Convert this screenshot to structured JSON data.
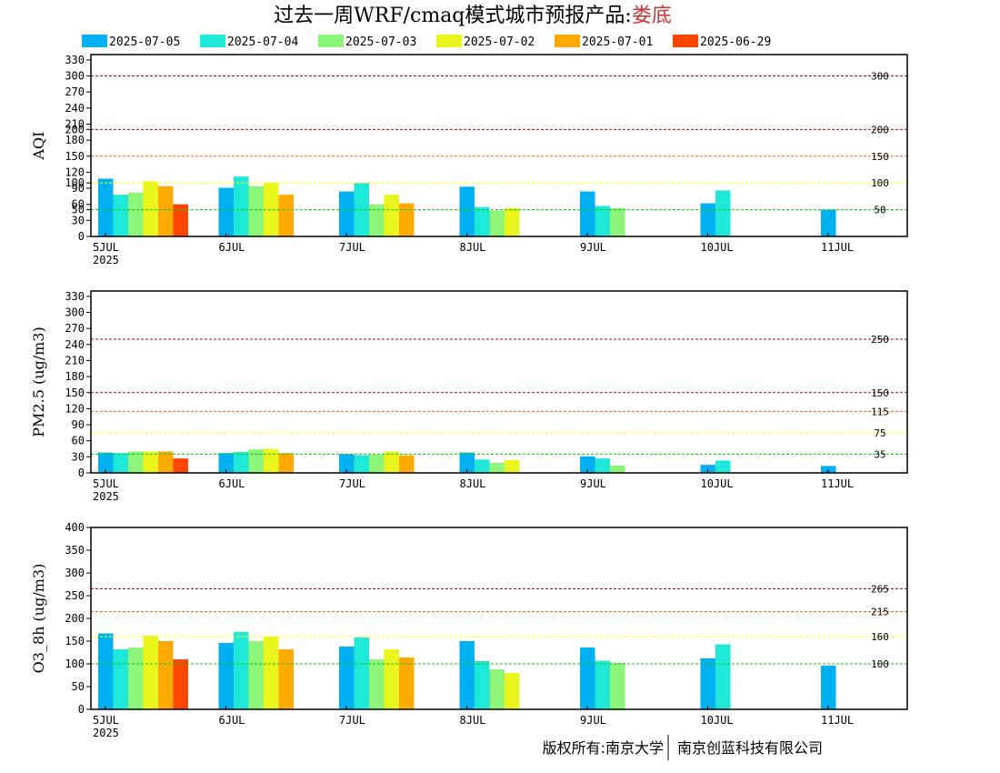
{
  "header": {
    "title_main": "过去一周WRF/cmaq模式城市预报产品:",
    "title_city": "娄底",
    "title_city_color": "#cc3333"
  },
  "footer": {
    "copyright_left": "版权所有:南京大学",
    "copyright_right": "南京创蓝科技有限公司"
  },
  "chart_data": {
    "type": "bar",
    "categories": [
      "5JUL",
      "6JUL",
      "7JUL",
      "8JUL",
      "9JUL",
      "10JUL",
      "11JUL"
    ],
    "first_category_year": "2025",
    "series": [
      {
        "name": "2025-07-05",
        "color": "#00b0f0"
      },
      {
        "name": "2025-07-04",
        "color": "#1ee8d8"
      },
      {
        "name": "2025-07-03",
        "color": "#8cf57a"
      },
      {
        "name": "2025-07-02",
        "color": "#eaf51e"
      },
      {
        "name": "2025-07-01",
        "color": "#ffaa00"
      },
      {
        "name": "2025-06-29",
        "color": "#ff4500"
      }
    ],
    "legend_placement": "top",
    "panels": [
      {
        "ylabel": "AQI",
        "ylim": [
          0,
          340
        ],
        "yticks": [
          0,
          30,
          50,
          60,
          90,
          100,
          120,
          150,
          180,
          200,
          210,
          240,
          270,
          300,
          330
        ],
        "values": [
          [
            108,
            91,
            84,
            93,
            84,
            62,
            50
          ],
          [
            78,
            112,
            100,
            55,
            57,
            86,
            null
          ],
          [
            82,
            94,
            60,
            48,
            53,
            null,
            null
          ],
          [
            103,
            100,
            78,
            53,
            null,
            null,
            null
          ],
          [
            94,
            78,
            62,
            null,
            null,
            null,
            null
          ],
          [
            60,
            null,
            null,
            null,
            null,
            null,
            null
          ]
        ],
        "ref_lines": [
          {
            "value": 300,
            "label": "300",
            "color": "#990033"
          },
          {
            "value": 200,
            "label": "200",
            "color": "#cc0000"
          },
          {
            "value": 150,
            "label": "150",
            "color": "#ff6600"
          },
          {
            "value": 100,
            "label": "100",
            "color": "#ffff00"
          },
          {
            "value": 50,
            "label": "50",
            "color": "#00cc00"
          }
        ]
      },
      {
        "ylabel": "PM2.5 (ug/m3)",
        "ylim": [
          0,
          340
        ],
        "yticks": [
          0,
          30,
          60,
          90,
          120,
          150,
          180,
          210,
          240,
          270,
          300,
          330
        ],
        "values": [
          [
            38,
            37,
            35,
            38,
            31,
            15,
            13
          ],
          [
            37,
            39,
            33,
            25,
            27,
            23,
            null
          ],
          [
            40,
            44,
            34,
            19,
            14,
            null,
            null
          ],
          [
            40,
            45,
            40,
            24,
            null,
            null,
            null
          ],
          [
            40,
            37,
            33,
            null,
            null,
            null,
            null
          ],
          [
            27,
            null,
            null,
            null,
            null,
            null,
            null
          ]
        ],
        "ref_lines": [
          {
            "value": 250,
            "label": "250",
            "color": "#990033"
          },
          {
            "value": 150,
            "label": "150",
            "color": "#cc0000"
          },
          {
            "value": 115,
            "label": "115",
            "color": "#ff6600"
          },
          {
            "value": 75,
            "label": "75",
            "color": "#ffff00"
          },
          {
            "value": 35,
            "label": "35",
            "color": "#00cc00"
          }
        ]
      },
      {
        "ylabel": "O3_8h (ug/m3)",
        "ylim": [
          0,
          400
        ],
        "yticks": [
          0,
          50,
          100,
          150,
          200,
          250,
          300,
          350,
          400
        ],
        "values": [
          [
            167,
            146,
            138,
            150,
            136,
            112,
            96
          ],
          [
            132,
            170,
            158,
            106,
            107,
            143,
            null
          ],
          [
            136,
            150,
            110,
            88,
            102,
            null,
            null
          ],
          [
            162,
            160,
            132,
            80,
            null,
            null,
            null
          ],
          [
            150,
            132,
            114,
            null,
            null,
            null,
            null
          ],
          [
            110,
            null,
            null,
            null,
            null,
            null,
            null
          ]
        ],
        "ref_lines": [
          {
            "value": 265,
            "label": "265",
            "color": "#cc0000"
          },
          {
            "value": 215,
            "label": "215",
            "color": "#ff6600"
          },
          {
            "value": 160,
            "label": "160",
            "color": "#ffff00"
          },
          {
            "value": 100,
            "label": "100",
            "color": "#00cc00"
          }
        ]
      }
    ]
  }
}
